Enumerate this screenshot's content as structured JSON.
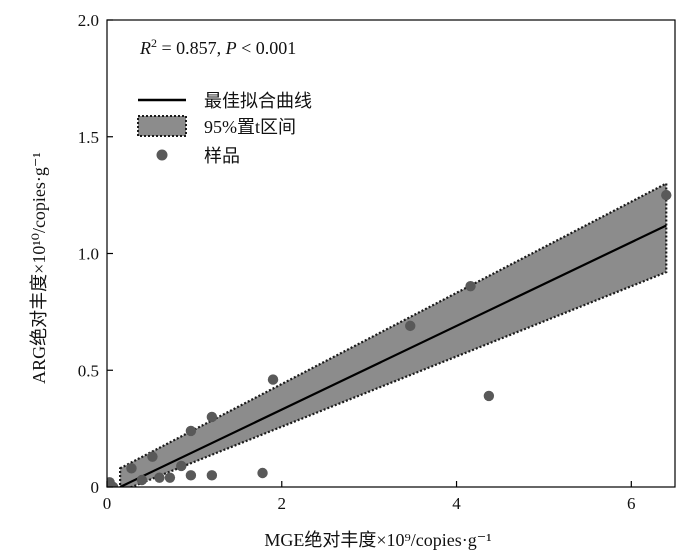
{
  "chart_data": {
    "type": "scatter",
    "xlabel": "MGE绝对丰度×10⁹/copies·g⁻¹",
    "ylabel": "ARG绝对丰度×10¹⁰/copies·g⁻¹",
    "xlim": [
      0,
      6.5
    ],
    "ylim": [
      0,
      2.0
    ],
    "x_ticks": [
      {
        "value": 0,
        "label": "0"
      },
      {
        "value": 2,
        "label": "2"
      },
      {
        "value": 4,
        "label": "4"
      },
      {
        "value": 6,
        "label": "6"
      }
    ],
    "y_ticks": [
      {
        "value": 0,
        "label": "0"
      },
      {
        "value": 0.5,
        "label": "0.5"
      },
      {
        "value": 1.0,
        "label": "1.0"
      },
      {
        "value": 1.5,
        "label": "1.5"
      },
      {
        "value": 2.0,
        "label": "2.0"
      }
    ],
    "annotation": {
      "r2_symbol": "R",
      "r2_sup": "2",
      "r2_text": " = 0.857, ",
      "p_symbol": "P",
      "p_text": " < 0.001"
    },
    "legend": {
      "placement": "top-left",
      "fit_label": "最佳拟合曲线",
      "ci_label": "95%置t区间",
      "points_label": "样品"
    },
    "fit_line": {
      "x": [
        0.15,
        6.4
      ],
      "y": [
        0.0,
        1.12
      ]
    },
    "ci_band": {
      "x": [
        0.15,
        6.4
      ],
      "upper": [
        0.08,
        1.3
      ],
      "lower": [
        -0.02,
        0.92
      ]
    },
    "points": [
      {
        "x": 0.03,
        "y": 0.02
      },
      {
        "x": 0.07,
        "y": 0.0
      },
      {
        "x": 0.28,
        "y": 0.08
      },
      {
        "x": 0.4,
        "y": 0.03
      },
      {
        "x": 0.52,
        "y": 0.13
      },
      {
        "x": 0.6,
        "y": 0.04
      },
      {
        "x": 0.72,
        "y": 0.04
      },
      {
        "x": 0.85,
        "y": 0.09
      },
      {
        "x": 0.96,
        "y": 0.24
      },
      {
        "x": 0.96,
        "y": 0.05
      },
      {
        "x": 1.2,
        "y": 0.3
      },
      {
        "x": 1.2,
        "y": 0.05
      },
      {
        "x": 1.78,
        "y": 0.06
      },
      {
        "x": 1.9,
        "y": 0.46
      },
      {
        "x": 3.47,
        "y": 0.69
      },
      {
        "x": 4.16,
        "y": 0.86
      },
      {
        "x": 4.37,
        "y": 0.39
      },
      {
        "x": 6.4,
        "y": 1.25
      }
    ],
    "colors": {
      "band_fill": "#8c8c8c",
      "band_edge": "#1a1a1a",
      "line": "#000000",
      "points": "#595959",
      "axis": "#000000"
    }
  }
}
